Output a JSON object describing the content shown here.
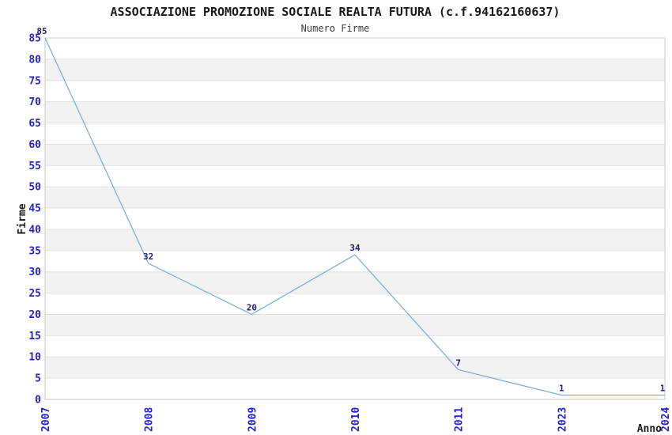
{
  "chart_data": {
    "type": "line",
    "title": "ASSOCIAZIONE PROMOZIONE SOCIALE REALTA FUTURA (c.f.94162160637)",
    "subtitle": "Numero Firme",
    "categories": [
      "2007",
      "2008",
      "2009",
      "2010",
      "2011",
      "2023",
      "2024"
    ],
    "series": [
      {
        "name": "Numero Firme",
        "values": [
          85,
          32,
          20,
          34,
          7,
          1,
          1
        ]
      }
    ],
    "point_labels": [
      "85",
      "32",
      "20",
      "34",
      "7",
      "1",
      "1"
    ],
    "xlabel": "Anno",
    "ylabel": "Firme",
    "ylim": [
      0,
      85
    ],
    "ytick_step": 5,
    "grid": true,
    "banded_background": true,
    "legend_position": "none"
  },
  "colors": {
    "line": "#7caede",
    "tick_label": "#2222cc",
    "point_label": "#202070",
    "band": "#f2f2f2",
    "grid": "#e0e0e0",
    "plot_border": "#c9c9c9",
    "background": "#ffffff",
    "title": "#1a1a1a",
    "subtitle": "#3a3a3a",
    "axis_label": "#1a1a1a"
  }
}
